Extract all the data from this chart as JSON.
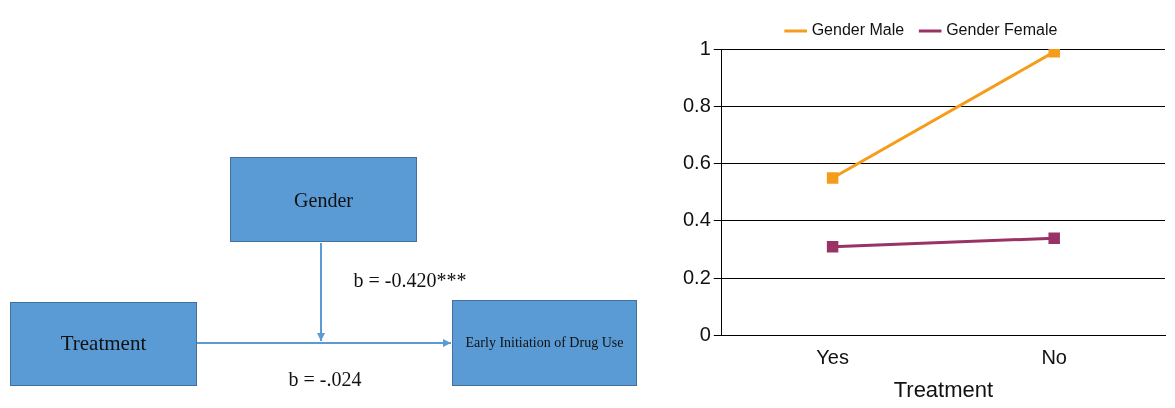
{
  "chart_data": [
    {
      "type": "other",
      "annotations": [
        "Gender",
        "b = -0.420***",
        "Treatment",
        "Early Initiation of Drug Use",
        "b = -.024"
      ]
    },
    {
      "type": "line",
      "categories": [
        "Yes",
        "No"
      ],
      "xlabel": "Treatment",
      "series": [
        {
          "name": "Gender Male",
          "color": "#f59c1a",
          "values": [
            0.55,
            0.99
          ]
        },
        {
          "name": "Gender Female",
          "color": "#993366",
          "values": [
            0.31,
            0.34
          ]
        }
      ],
      "ylim": [
        0,
        1
      ],
      "yticks": [
        0,
        0.2,
        0.4,
        0.6,
        0.8,
        1
      ],
      "grid": "y",
      "legend": "top",
      "marker": "square",
      "line_style": "solid"
    }
  ]
}
